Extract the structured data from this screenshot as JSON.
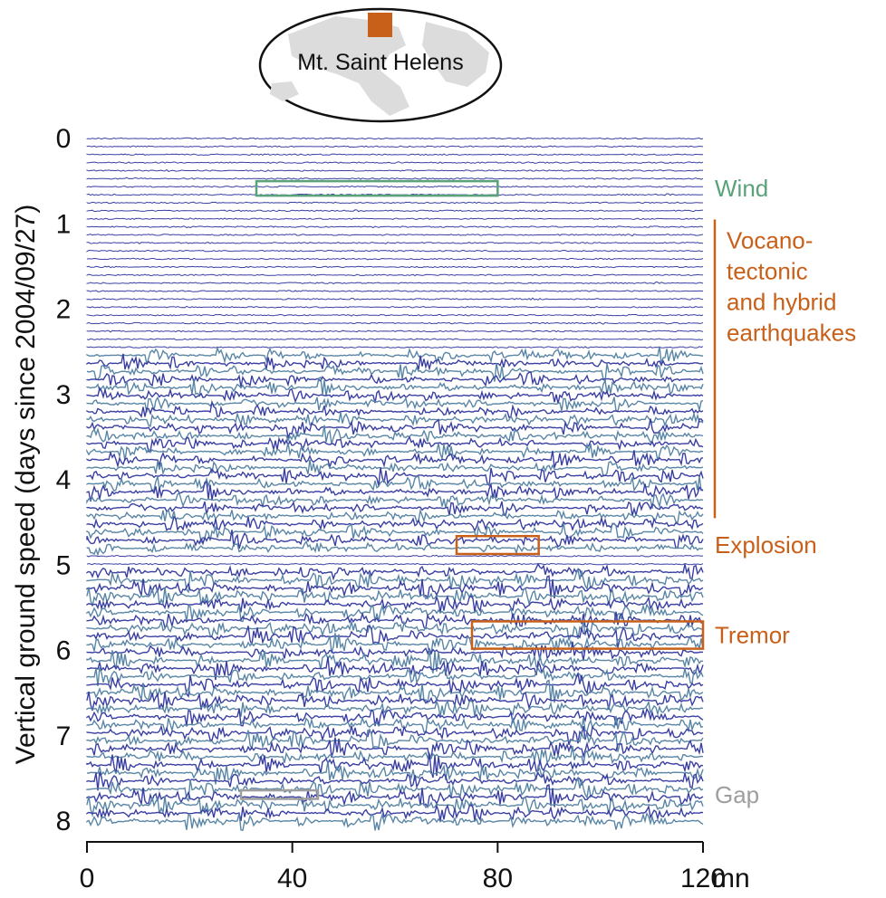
{
  "chart_data": {
    "type": "line",
    "subtype": "seismic-helicorder",
    "ylabel": "Vertical ground speed (days since 2004/09/27)",
    "x_unit": "mn",
    "xlim": [
      0,
      120
    ],
    "ylim": [
      0,
      8
    ],
    "y_inverted": true,
    "x_ticks": [
      0,
      40,
      80,
      120
    ],
    "y_ticks": [
      0,
      1,
      2,
      3,
      4,
      5,
      6,
      7,
      8
    ],
    "grid": false,
    "trace_colors": [
      "#3a3fa3",
      "#5a86a6"
    ],
    "station": {
      "label": "Mt. Saint Helens",
      "marker_color": "#c8601a"
    },
    "activity_phases": [
      {
        "start_day": 0.0,
        "end_day": 2.5,
        "level": "low"
      },
      {
        "start_day": 2.5,
        "end_day": 4.85,
        "level": "high"
      },
      {
        "start_day": 4.85,
        "end_day": 5.0,
        "level": "low"
      },
      {
        "start_day": 5.0,
        "end_day": 8.0,
        "level": "very-high"
      }
    ],
    "annotations": [
      {
        "label": "Wind",
        "type": "box",
        "color": "#5aa37a",
        "x": [
          33,
          80
        ],
        "y": [
          0.5,
          0.67
        ]
      },
      {
        "label": "Vocano-\ntectonic\nand hybrid\nearthquakes",
        "type": "bracket",
        "color": "#c8601a",
        "y": [
          0.95,
          4.45
        ]
      },
      {
        "label": "Explosion",
        "type": "box",
        "color": "#c8601a",
        "x": [
          72,
          88
        ],
        "y": [
          4.66,
          4.87
        ]
      },
      {
        "label": "Tremor",
        "type": "box",
        "color": "#c8601a",
        "x": [
          75,
          120
        ],
        "y": [
          5.66,
          5.98
        ]
      },
      {
        "label": "Gap",
        "type": "box",
        "color": "#9e9e9e",
        "x": [
          30,
          45
        ],
        "y": [
          7.64,
          7.74
        ]
      }
    ]
  }
}
